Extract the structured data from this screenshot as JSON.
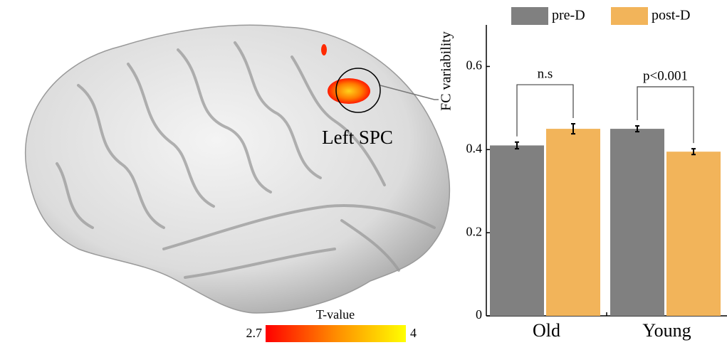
{
  "brain_map": {
    "region_label": "Left SPC",
    "colorbar": {
      "title": "T-value",
      "min": 2.7,
      "max": 4
    }
  },
  "chart_data": {
    "type": "bar",
    "y_label": "FC variability",
    "categories": [
      "Old",
      "Young"
    ],
    "series": [
      {
        "name": "pre-D",
        "color": "#808080",
        "values": [
          0.41,
          0.45
        ],
        "errors": [
          0.008,
          0.007
        ]
      },
      {
        "name": "post-D",
        "color": "#f2b45a",
        "values": [
          0.45,
          0.395
        ],
        "errors": [
          0.012,
          0.007
        ]
      }
    ],
    "annotations": [
      "n.s",
      "p<0.001"
    ],
    "ylim": [
      0,
      0.7
    ],
    "yticks": [
      0,
      0.2,
      0.4,
      0.6
    ],
    "grid": false,
    "legend": "top"
  }
}
